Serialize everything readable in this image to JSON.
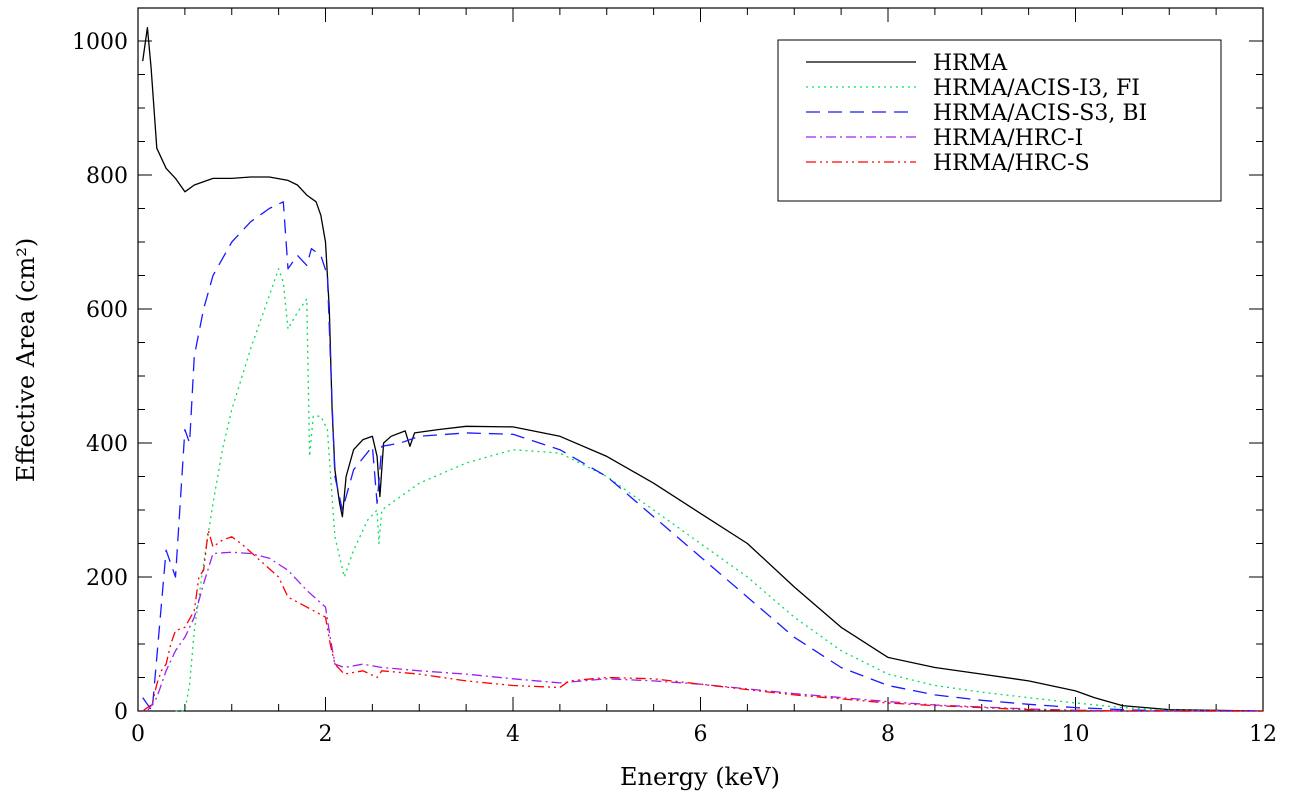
{
  "chart_data": {
    "type": "line",
    "title": "",
    "xlabel": "Energy (keV)",
    "ylabel": "Effective Area  (cm²)",
    "xlim": [
      0,
      12
    ],
    "ylim": [
      0,
      1000
    ],
    "x_ticks": [
      0,
      2,
      4,
      6,
      8,
      10,
      12
    ],
    "y_ticks": [
      0,
      200,
      400,
      600,
      800,
      1000
    ],
    "grid": false,
    "legend_position": "top-right",
    "series": [
      {
        "name": "HRMA",
        "color": "#000000",
        "dash": "solid",
        "points": [
          [
            0.05,
            970
          ],
          [
            0.1,
            1020
          ],
          [
            0.14,
            960
          ],
          [
            0.2,
            840
          ],
          [
            0.3,
            810
          ],
          [
            0.4,
            795
          ],
          [
            0.5,
            775
          ],
          [
            0.6,
            785
          ],
          [
            0.8,
            795
          ],
          [
            1.0,
            795
          ],
          [
            1.2,
            797
          ],
          [
            1.4,
            797
          ],
          [
            1.6,
            792
          ],
          [
            1.7,
            785
          ],
          [
            1.8,
            770
          ],
          [
            1.9,
            760
          ],
          [
            1.95,
            740
          ],
          [
            2.0,
            700
          ],
          [
            2.04,
            600
          ],
          [
            2.07,
            450
          ],
          [
            2.1,
            360
          ],
          [
            2.15,
            310
          ],
          [
            2.18,
            290
          ],
          [
            2.22,
            350
          ],
          [
            2.3,
            390
          ],
          [
            2.4,
            405
          ],
          [
            2.5,
            410
          ],
          [
            2.55,
            380
          ],
          [
            2.58,
            320
          ],
          [
            2.62,
            400
          ],
          [
            2.7,
            410
          ],
          [
            2.85,
            418
          ],
          [
            2.9,
            395
          ],
          [
            2.95,
            415
          ],
          [
            3.2,
            420
          ],
          [
            3.5,
            425
          ],
          [
            4.0,
            424
          ],
          [
            4.5,
            410
          ],
          [
            5.0,
            380
          ],
          [
            5.5,
            340
          ],
          [
            6.0,
            295
          ],
          [
            6.5,
            250
          ],
          [
            7.0,
            185
          ],
          [
            7.5,
            125
          ],
          [
            8.0,
            80
          ],
          [
            8.5,
            65
          ],
          [
            9.0,
            55
          ],
          [
            9.5,
            45
          ],
          [
            10.0,
            30
          ],
          [
            10.2,
            20
          ],
          [
            10.5,
            8
          ],
          [
            11.0,
            2
          ],
          [
            12.0,
            0
          ]
        ]
      },
      {
        "name": "HRMA/ACIS-I3, FI",
        "color": "#00e05a",
        "dash": "dotted",
        "points": [
          [
            0.4,
            0
          ],
          [
            0.5,
            0
          ],
          [
            0.55,
            40
          ],
          [
            0.6,
            120
          ],
          [
            0.7,
            220
          ],
          [
            0.8,
            310
          ],
          [
            0.9,
            390
          ],
          [
            1.0,
            450
          ],
          [
            1.2,
            540
          ],
          [
            1.4,
            620
          ],
          [
            1.5,
            660
          ],
          [
            1.55,
            640
          ],
          [
            1.6,
            570
          ],
          [
            1.7,
            595
          ],
          [
            1.8,
            615
          ],
          [
            1.83,
            380
          ],
          [
            1.87,
            440
          ],
          [
            1.95,
            440
          ],
          [
            2.02,
            420
          ],
          [
            2.06,
            340
          ],
          [
            2.1,
            260
          ],
          [
            2.2,
            200
          ],
          [
            2.3,
            240
          ],
          [
            2.45,
            285
          ],
          [
            2.55,
            300
          ],
          [
            2.57,
            250
          ],
          [
            2.6,
            300
          ],
          [
            2.8,
            320
          ],
          [
            3.0,
            340
          ],
          [
            3.5,
            370
          ],
          [
            4.0,
            390
          ],
          [
            4.5,
            385
          ],
          [
            5.0,
            350
          ],
          [
            5.5,
            300
          ],
          [
            6.0,
            250
          ],
          [
            6.5,
            200
          ],
          [
            7.0,
            140
          ],
          [
            7.5,
            90
          ],
          [
            8.0,
            55
          ],
          [
            8.5,
            38
          ],
          [
            9.0,
            28
          ],
          [
            9.5,
            20
          ],
          [
            10.0,
            12
          ],
          [
            10.5,
            5
          ],
          [
            11.0,
            1
          ],
          [
            12.0,
            0
          ]
        ]
      },
      {
        "name": "HRMA/ACIS-S3, BI",
        "color": "#1a1aff",
        "dash": "dashed",
        "points": [
          [
            0.05,
            20
          ],
          [
            0.15,
            0
          ],
          [
            0.2,
            80
          ],
          [
            0.3,
            240
          ],
          [
            0.4,
            200
          ],
          [
            0.45,
            310
          ],
          [
            0.5,
            420
          ],
          [
            0.55,
            400
          ],
          [
            0.6,
            530
          ],
          [
            0.7,
            600
          ],
          [
            0.8,
            650
          ],
          [
            1.0,
            700
          ],
          [
            1.2,
            730
          ],
          [
            1.4,
            750
          ],
          [
            1.55,
            760
          ],
          [
            1.6,
            660
          ],
          [
            1.7,
            680
          ],
          [
            1.8,
            665
          ],
          [
            1.85,
            690
          ],
          [
            1.95,
            680
          ],
          [
            2.02,
            650
          ],
          [
            2.06,
            500
          ],
          [
            2.1,
            350
          ],
          [
            2.18,
            300
          ],
          [
            2.3,
            360
          ],
          [
            2.5,
            395
          ],
          [
            2.55,
            310
          ],
          [
            2.6,
            395
          ],
          [
            2.8,
            400
          ],
          [
            3.0,
            410
          ],
          [
            3.5,
            415
          ],
          [
            4.0,
            413
          ],
          [
            4.5,
            390
          ],
          [
            5.0,
            350
          ],
          [
            5.5,
            290
          ],
          [
            6.0,
            230
          ],
          [
            6.5,
            170
          ],
          [
            7.0,
            110
          ],
          [
            7.5,
            65
          ],
          [
            8.0,
            38
          ],
          [
            8.5,
            24
          ],
          [
            9.0,
            16
          ],
          [
            9.5,
            10
          ],
          [
            10.0,
            5
          ],
          [
            10.5,
            2
          ],
          [
            11.0,
            0
          ],
          [
            12.0,
            0
          ]
        ]
      },
      {
        "name": "HRMA/HRC-I",
        "color": "#a020f0",
        "dash": "dashdot",
        "points": [
          [
            0.1,
            0
          ],
          [
            0.2,
            20
          ],
          [
            0.3,
            60
          ],
          [
            0.4,
            90
          ],
          [
            0.5,
            110
          ],
          [
            0.6,
            140
          ],
          [
            0.7,
            190
          ],
          [
            0.8,
            235
          ],
          [
            1.0,
            237
          ],
          [
            1.2,
            235
          ],
          [
            1.4,
            228
          ],
          [
            1.6,
            210
          ],
          [
            1.8,
            180
          ],
          [
            2.0,
            155
          ],
          [
            2.05,
            110
          ],
          [
            2.1,
            70
          ],
          [
            2.2,
            65
          ],
          [
            2.4,
            70
          ],
          [
            2.6,
            65
          ],
          [
            3.0,
            60
          ],
          [
            3.5,
            55
          ],
          [
            4.0,
            48
          ],
          [
            4.5,
            42
          ],
          [
            5.0,
            48
          ],
          [
            5.5,
            45
          ],
          [
            6.0,
            40
          ],
          [
            6.5,
            33
          ],
          [
            7.0,
            26
          ],
          [
            7.5,
            20
          ],
          [
            8.0,
            14
          ],
          [
            8.5,
            9
          ],
          [
            9.0,
            6
          ],
          [
            9.5,
            3
          ],
          [
            10.0,
            1
          ],
          [
            10.5,
            0
          ],
          [
            12.0,
            0
          ]
        ]
      },
      {
        "name": "HRMA/HRC-S",
        "color": "#ff0000",
        "dash": "dashdotdot",
        "points": [
          [
            0.05,
            0
          ],
          [
            0.15,
            10
          ],
          [
            0.2,
            40
          ],
          [
            0.25,
            60
          ],
          [
            0.3,
            70
          ],
          [
            0.35,
            100
          ],
          [
            0.4,
            120
          ],
          [
            0.5,
            125
          ],
          [
            0.6,
            150
          ],
          [
            0.65,
            200
          ],
          [
            0.7,
            210
          ],
          [
            0.75,
            270
          ],
          [
            0.8,
            245
          ],
          [
            0.9,
            255
          ],
          [
            1.0,
            260
          ],
          [
            1.1,
            250
          ],
          [
            1.3,
            225
          ],
          [
            1.5,
            200
          ],
          [
            1.6,
            170
          ],
          [
            1.8,
            155
          ],
          [
            2.0,
            140
          ],
          [
            2.05,
            100
          ],
          [
            2.1,
            70
          ],
          [
            2.2,
            55
          ],
          [
            2.4,
            60
          ],
          [
            2.55,
            50
          ],
          [
            2.6,
            60
          ],
          [
            3.0,
            55
          ],
          [
            3.5,
            45
          ],
          [
            4.0,
            38
          ],
          [
            4.5,
            35
          ],
          [
            4.6,
            45
          ],
          [
            5.0,
            50
          ],
          [
            5.5,
            48
          ],
          [
            6.0,
            40
          ],
          [
            6.5,
            32
          ],
          [
            7.0,
            24
          ],
          [
            7.5,
            18
          ],
          [
            8.0,
            12
          ],
          [
            8.5,
            8
          ],
          [
            9.0,
            5
          ],
          [
            9.5,
            2
          ],
          [
            10.0,
            1
          ],
          [
            10.5,
            0
          ],
          [
            12.0,
            0
          ]
        ]
      }
    ]
  }
}
